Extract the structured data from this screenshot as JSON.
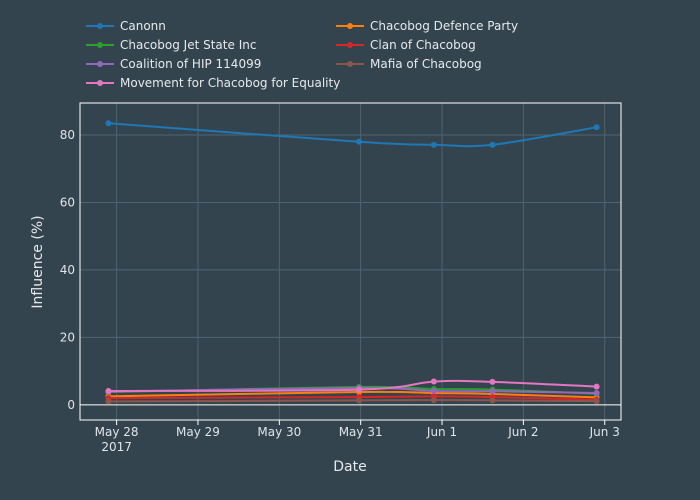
{
  "chart_data": {
    "type": "line",
    "title": "",
    "xlabel": "Date",
    "ylabel": "Influence (%)",
    "x_ticks": [
      {
        "x": 0,
        "label": "May 28",
        "sublabel": "2017"
      },
      {
        "x": 1,
        "label": "May 29",
        "sublabel": ""
      },
      {
        "x": 2,
        "label": "May 30",
        "sublabel": ""
      },
      {
        "x": 3,
        "label": "May 31",
        "sublabel": ""
      },
      {
        "x": 4,
        "label": "Jun 1",
        "sublabel": ""
      },
      {
        "x": 5,
        "label": "Jun 2",
        "sublabel": ""
      },
      {
        "x": 6,
        "label": "Jun 3",
        "sublabel": ""
      }
    ],
    "y_ticks": [
      0,
      20,
      40,
      60,
      80
    ],
    "xlim": [
      -0.45,
      6.2
    ],
    "ylim": [
      -4.5,
      89.5
    ],
    "grid": true,
    "legend_position": "top",
    "x": [
      -0.1,
      2.98,
      3.9,
      4.62,
      5.9
    ],
    "series": [
      {
        "name": "Canonn",
        "color": "#1f77b4",
        "values": [
          83.5,
          78.0,
          77.1,
          77.1,
          82.3
        ]
      },
      {
        "name": "Chacobog Defence Party",
        "color": "#ff7f0e",
        "values": [
          2.5,
          3.8,
          3.5,
          3.2,
          2.2
        ]
      },
      {
        "name": "Chacobog Jet State Inc",
        "color": "#2ca02c",
        "values": [
          3.8,
          5.3,
          4.7,
          4.5,
          3.3
        ]
      },
      {
        "name": "Clan of Chacobog",
        "color": "#d62728",
        "values": [
          2.0,
          2.3,
          2.5,
          2.3,
          1.5
        ]
      },
      {
        "name": "Coalition of HIP 114099",
        "color": "#9467bd",
        "values": [
          3.9,
          5.0,
          4.1,
          4.0,
          3.5
        ]
      },
      {
        "name": "Mafia of Chacobog",
        "color": "#8c564b",
        "values": [
          1.0,
          1.3,
          1.4,
          1.3,
          1.1
        ]
      },
      {
        "name": "Movement for Chacobog for Equality",
        "color": "#e377c2",
        "values": [
          4.1,
          4.5,
          6.9,
          6.8,
          5.4
        ]
      }
    ]
  }
}
